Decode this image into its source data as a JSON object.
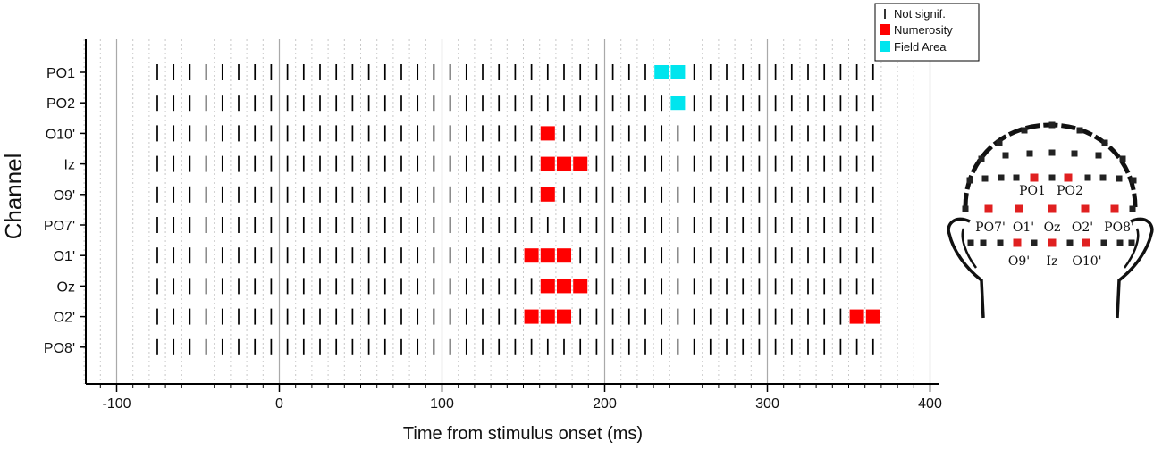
{
  "chart_data": {
    "type": "scatter",
    "xlabel": "Time from stimulus onset (ms)",
    "ylabel": "Channel",
    "xlim": [
      -120,
      405
    ],
    "x_ticks": [
      "-100",
      "0",
      "100",
      "200",
      "300",
      "400"
    ],
    "x_tick_values": [
      -100,
      0,
      100,
      200,
      300,
      400
    ],
    "minor_grid_step": 10,
    "grid": true,
    "channels": [
      "PO1",
      "PO2",
      "O10'",
      "Iz",
      "O9'",
      "PO7'",
      "O1'",
      "Oz",
      "O2'",
      "PO8'"
    ],
    "time_start": -75,
    "time_end": 365,
    "time_step": 10,
    "legend": {
      "placement": "top-right",
      "entries": [
        {
          "label": "Not signif.",
          "marker": "line",
          "color": "#000000"
        },
        {
          "label": "Numerosity",
          "marker": "square",
          "color": "#ff0000"
        },
        {
          "label": "Field Area",
          "marker": "square",
          "color": "#00e5ee"
        }
      ]
    },
    "series": [
      {
        "name": "Numerosity",
        "color": "#ff0000",
        "points": [
          {
            "channel": "O10'",
            "x": 165
          },
          {
            "channel": "Iz",
            "x": 165
          },
          {
            "channel": "Iz",
            "x": 175
          },
          {
            "channel": "Iz",
            "x": 185
          },
          {
            "channel": "O9'",
            "x": 165
          },
          {
            "channel": "O1'",
            "x": 155
          },
          {
            "channel": "O1'",
            "x": 165
          },
          {
            "channel": "O1'",
            "x": 175
          },
          {
            "channel": "Oz",
            "x": 165
          },
          {
            "channel": "Oz",
            "x": 175
          },
          {
            "channel": "Oz",
            "x": 185
          },
          {
            "channel": "O2'",
            "x": 155
          },
          {
            "channel": "O2'",
            "x": 165
          },
          {
            "channel": "O2'",
            "x": 175
          },
          {
            "channel": "O2'",
            "x": 355
          },
          {
            "channel": "O2'",
            "x": 365
          }
        ]
      },
      {
        "name": "Field Area",
        "color": "#00e5ee",
        "points": [
          {
            "channel": "PO1",
            "x": 235
          },
          {
            "channel": "PO1",
            "x": 245
          },
          {
            "channel": "PO2",
            "x": 245
          }
        ]
      }
    ]
  },
  "head_map": {
    "labels": [
      "PO1",
      "PO2",
      "PO7'",
      "O1'",
      "Oz",
      "O2'",
      "PO8'",
      "O9'",
      "Iz",
      "O10'"
    ],
    "highlight_color": "#e02020",
    "electrode_color": "#222222"
  }
}
